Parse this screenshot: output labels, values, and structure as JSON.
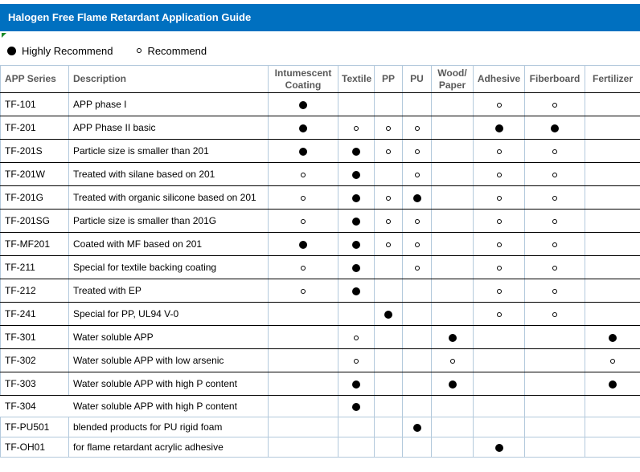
{
  "title": "Halogen Free Flame Retardant Application Guide",
  "legend": {
    "highly_recommend": "Highly Recommend",
    "recommend": "Recommend"
  },
  "colors": {
    "title_bar": "#0070C0",
    "header_text": "#595959",
    "gridline": "#b3c9dc",
    "row_border": "#000000",
    "flag_green": "#1d8a28",
    "dot": "#000000"
  },
  "table": {
    "columns": [
      {
        "id": "series",
        "label": "APP Series"
      },
      {
        "id": "description",
        "label": "Description"
      },
      {
        "id": "intumescent-coating",
        "label": "Intumescent\nCoating"
      },
      {
        "id": "textile",
        "label": "Textile"
      },
      {
        "id": "pp",
        "label": "PP"
      },
      {
        "id": "pu",
        "label": "PU"
      },
      {
        "id": "wood-paper",
        "label": "Wood/\nPaper"
      },
      {
        "id": "adhesive",
        "label": "Adhesive"
      },
      {
        "id": "fiberboard",
        "label": "Fiberboard"
      },
      {
        "id": "fertilizer",
        "label": "Fertilizer"
      }
    ],
    "mark_legend": {
      "H": "Highly Recommend",
      "R": "Recommend"
    },
    "rows": [
      {
        "series": "TF-101",
        "description": "APP phase I",
        "marks": [
          "H",
          "",
          "",
          "",
          "",
          "R",
          "R",
          ""
        ]
      },
      {
        "series": "TF-201",
        "description": "APP Phase II basic",
        "marks": [
          "H",
          "R",
          "R",
          "R",
          "",
          "H",
          "H",
          ""
        ]
      },
      {
        "series": "TF-201S",
        "description": "Particle size is smaller than 201",
        "marks": [
          "H",
          "H",
          "R",
          "R",
          "",
          "R",
          "R",
          ""
        ]
      },
      {
        "series": "TF-201W",
        "description": "Treated with silane based on 201",
        "marks": [
          "R",
          "H",
          "",
          "R",
          "",
          "R",
          "R",
          ""
        ]
      },
      {
        "series": "TF-201G",
        "description": "Treated with organic silicone based on 201",
        "marks": [
          "R",
          "H",
          "R",
          "H",
          "",
          "R",
          "R",
          ""
        ]
      },
      {
        "series": "TF-201SG",
        "description": "Particle size is smaller than 201G",
        "marks": [
          "R",
          "H",
          "R",
          "R",
          "",
          "R",
          "R",
          ""
        ]
      },
      {
        "series": "TF-MF201",
        "description": "Coated with MF based on 201",
        "marks": [
          "H",
          "H",
          "R",
          "R",
          "",
          "R",
          "R",
          ""
        ]
      },
      {
        "series": "TF-211",
        "description": "Special for textile backing coating",
        "marks": [
          "R",
          "H",
          "",
          "R",
          "",
          "R",
          "R",
          ""
        ]
      },
      {
        "series": "TF-212",
        "description": "Treated with EP",
        "marks": [
          "R",
          "H",
          "",
          "",
          "",
          "R",
          "R",
          ""
        ]
      },
      {
        "series": "TF-241",
        "description": "Special for PP, UL94 V-0",
        "marks": [
          "",
          "",
          "H",
          "",
          "",
          "R",
          "R",
          ""
        ]
      },
      {
        "series": "TF-301",
        "description": "Water soluble APP",
        "marks": [
          "",
          "R",
          "",
          "",
          "H",
          "",
          "",
          "H"
        ]
      },
      {
        "series": "TF-302",
        "description": "Water soluble APP with low arsenic",
        "marks": [
          "",
          "R",
          "",
          "",
          "R",
          "",
          "",
          "R"
        ]
      },
      {
        "series": "TF-303",
        "description": "Water soluble APP with high P content",
        "marks": [
          "",
          "H",
          "",
          "",
          "H",
          "",
          "",
          "H"
        ]
      },
      {
        "series": "TF-304",
        "description": "Water soluble APP with high P content",
        "marks": [
          "",
          "H",
          "",
          "",
          "",
          "",
          "",
          ""
        ]
      },
      {
        "series": "TF-PU501",
        "description": "blended products for PU rigid foam",
        "marks": [
          "",
          "",
          "",
          "H",
          "",
          "",
          "",
          ""
        ]
      },
      {
        "series": "TF-OH01",
        "description": "for flame retardant acrylic adhesive",
        "marks": [
          "",
          "",
          "",
          "",
          "",
          "H",
          "",
          ""
        ]
      }
    ]
  }
}
